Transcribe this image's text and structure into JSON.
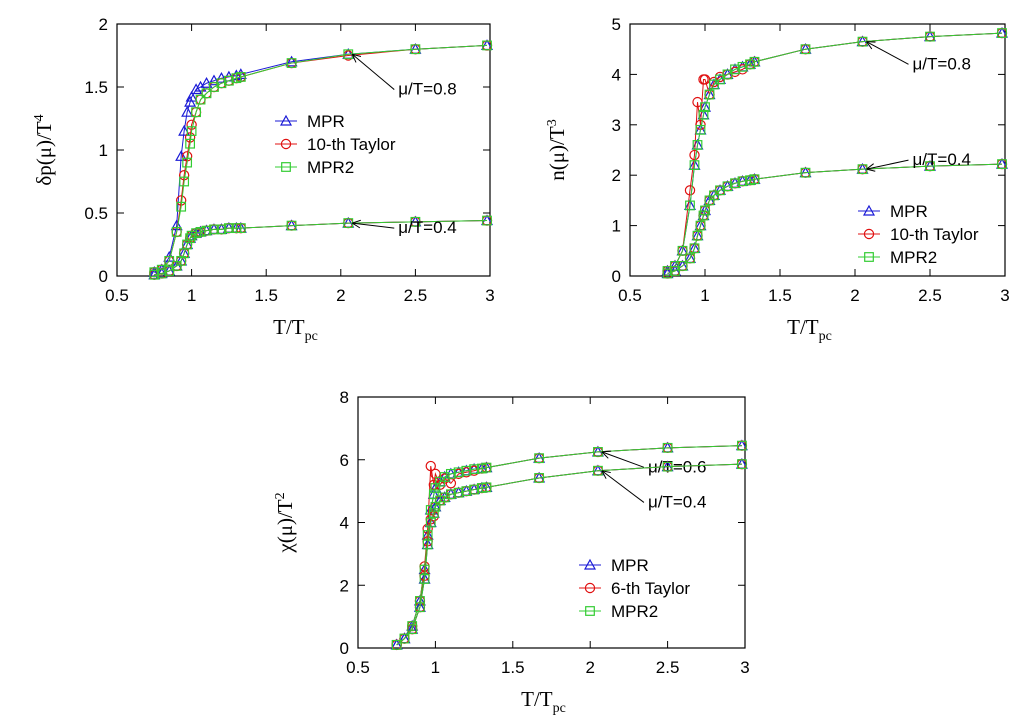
{
  "chart_data": [
    {
      "type": "line",
      "xlabel": "T/T",
      "xlabel_sub": "pc",
      "ylabel": "δp(μ)/T",
      "ylabel_sup": "4",
      "xlim": [
        0.5,
        3
      ],
      "ylim": [
        0,
        2
      ],
      "xticks": [
        "0.5",
        "1",
        "1.5",
        "2",
        "2.5",
        "3"
      ],
      "yticks": [
        "0",
        "0.5",
        "1",
        "1.5",
        "2"
      ],
      "legend": {
        "position": "center-right",
        "entries": [
          "MPR",
          "10-th Taylor",
          "MPR2"
        ]
      },
      "x": [
        0.75,
        0.8,
        0.85,
        0.9,
        0.93,
        0.95,
        0.97,
        0.99,
        1.0,
        1.03,
        1.06,
        1.1,
        1.15,
        1.2,
        1.25,
        1.3,
        1.33,
        1.67,
        2.05,
        2.5,
        2.98
      ],
      "curves": [
        {
          "annotation": "μ/T=0.8",
          "annotation_arrow_x": 2.05,
          "series": [
            {
              "name": "MPR",
              "values": [
                0.03,
                0.05,
                0.15,
                0.4,
                0.95,
                1.15,
                1.3,
                1.38,
                1.42,
                1.48,
                1.5,
                1.53,
                1.55,
                1.57,
                1.58,
                1.59,
                1.6,
                1.7,
                1.76,
                1.8,
                1.83
              ]
            },
            {
              "name": "10-th Taylor",
              "values": [
                0.03,
                0.05,
                0.12,
                0.35,
                0.6,
                0.8,
                0.95,
                1.1,
                1.2,
                1.3,
                1.4,
                1.45,
                1.5,
                1.53,
                1.55,
                1.57,
                1.58,
                1.69,
                1.75,
                1.8,
                1.83
              ]
            },
            {
              "name": "MPR2",
              "values": [
                0.03,
                0.05,
                0.12,
                0.35,
                0.55,
                0.75,
                0.9,
                1.05,
                1.15,
                1.3,
                1.4,
                1.45,
                1.5,
                1.53,
                1.55,
                1.57,
                1.58,
                1.69,
                1.76,
                1.8,
                1.83
              ]
            }
          ]
        },
        {
          "annotation": "μ/T=0.4",
          "annotation_arrow_x": 2.05,
          "series": [
            {
              "name": "MPR",
              "values": [
                0.01,
                0.02,
                0.04,
                0.08,
                0.12,
                0.18,
                0.25,
                0.3,
                0.32,
                0.34,
                0.35,
                0.36,
                0.37,
                0.37,
                0.38,
                0.38,
                0.38,
                0.4,
                0.42,
                0.43,
                0.44
              ]
            },
            {
              "name": "10-th Taylor",
              "values": [
                0.01,
                0.02,
                0.04,
                0.08,
                0.12,
                0.18,
                0.25,
                0.3,
                0.32,
                0.34,
                0.35,
                0.36,
                0.37,
                0.37,
                0.38,
                0.38,
                0.38,
                0.4,
                0.42,
                0.43,
                0.44
              ]
            },
            {
              "name": "MPR2",
              "values": [
                0.01,
                0.02,
                0.04,
                0.08,
                0.12,
                0.18,
                0.25,
                0.3,
                0.32,
                0.34,
                0.35,
                0.36,
                0.37,
                0.37,
                0.38,
                0.38,
                0.38,
                0.4,
                0.42,
                0.43,
                0.44
              ]
            }
          ]
        }
      ]
    },
    {
      "type": "line",
      "xlabel": "T/T",
      "xlabel_sub": "pc",
      "ylabel": "n(μ)/T",
      "ylabel_sup": "3",
      "xlim": [
        0.5,
        3
      ],
      "ylim": [
        0,
        5
      ],
      "xticks": [
        "0.5",
        "1",
        "1.5",
        "2",
        "2.5",
        "3"
      ],
      "yticks": [
        "0",
        "1",
        "2",
        "3",
        "4",
        "5"
      ],
      "legend": {
        "position": "bottom-right",
        "entries": [
          "MPR",
          "10-th Taylor",
          "MPR2"
        ]
      },
      "x": [
        0.75,
        0.8,
        0.85,
        0.9,
        0.93,
        0.95,
        0.97,
        0.99,
        1.0,
        1.03,
        1.06,
        1.1,
        1.15,
        1.2,
        1.25,
        1.3,
        1.33,
        1.67,
        2.05,
        2.5,
        2.98
      ],
      "curves": [
        {
          "annotation": "μ/T=0.8",
          "annotation_arrow_x": 2.05,
          "series": [
            {
              "name": "MPR",
              "values": [
                0.1,
                0.2,
                0.5,
                1.4,
                2.2,
                2.6,
                2.9,
                3.2,
                3.35,
                3.6,
                3.8,
                3.9,
                4.0,
                4.1,
                4.15,
                4.2,
                4.25,
                4.5,
                4.65,
                4.75,
                4.82
              ]
            },
            {
              "name": "10-th Taylor",
              "values": [
                0.1,
                0.2,
                0.5,
                1.7,
                2.4,
                3.45,
                3.0,
                3.9,
                3.9,
                3.6,
                3.85,
                3.95,
                4.0,
                4.05,
                4.1,
                4.2,
                4.25,
                4.5,
                4.65,
                4.75,
                4.82
              ]
            },
            {
              "name": "MPR2",
              "values": [
                0.1,
                0.2,
                0.5,
                1.4,
                2.2,
                2.6,
                2.9,
                3.2,
                3.35,
                3.6,
                3.8,
                3.9,
                4.0,
                4.1,
                4.15,
                4.2,
                4.25,
                4.5,
                4.65,
                4.75,
                4.82
              ]
            }
          ]
        },
        {
          "annotation": "μ/T=0.4",
          "annotation_arrow_x": 2.05,
          "series": [
            {
              "name": "MPR",
              "values": [
                0.05,
                0.1,
                0.2,
                0.35,
                0.55,
                0.8,
                1.0,
                1.2,
                1.3,
                1.5,
                1.6,
                1.7,
                1.78,
                1.84,
                1.88,
                1.9,
                1.92,
                2.05,
                2.12,
                2.18,
                2.22
              ]
            },
            {
              "name": "10-th Taylor",
              "values": [
                0.05,
                0.1,
                0.2,
                0.35,
                0.55,
                0.8,
                1.0,
                1.2,
                1.3,
                1.5,
                1.6,
                1.7,
                1.78,
                1.84,
                1.88,
                1.9,
                1.92,
                2.05,
                2.12,
                2.18,
                2.22
              ]
            },
            {
              "name": "MPR2",
              "values": [
                0.05,
                0.1,
                0.2,
                0.35,
                0.55,
                0.8,
                1.0,
                1.2,
                1.3,
                1.5,
                1.6,
                1.7,
                1.78,
                1.84,
                1.88,
                1.9,
                1.92,
                2.05,
                2.12,
                2.18,
                2.22
              ]
            }
          ]
        }
      ]
    },
    {
      "type": "line",
      "xlabel": "T/T",
      "xlabel_sub": "pc",
      "ylabel": "χ(μ)/T",
      "ylabel_sup": "2",
      "xlim": [
        0.5,
        3
      ],
      "ylim": [
        0,
        8
      ],
      "xticks": [
        "0.5",
        "1",
        "1.5",
        "2",
        "2.5",
        "3"
      ],
      "yticks": [
        "0",
        "2",
        "4",
        "6",
        "8"
      ],
      "legend": {
        "position": "bottom-right",
        "entries": [
          "MPR",
          "6-th Taylor",
          "MPR2"
        ]
      },
      "x": [
        0.75,
        0.8,
        0.85,
        0.9,
        0.93,
        0.95,
        0.97,
        0.99,
        1.0,
        1.03,
        1.06,
        1.1,
        1.15,
        1.2,
        1.25,
        1.3,
        1.33,
        1.67,
        2.05,
        2.5,
        2.98
      ],
      "curves": [
        {
          "annotation": "μ/T=0.6",
          "annotation_arrow_x": 2.05,
          "series": [
            {
              "name": "MPR",
              "values": [
                0.1,
                0.3,
                0.7,
                1.5,
                2.5,
                3.6,
                4.4,
                4.9,
                5.1,
                5.3,
                5.45,
                5.55,
                5.6,
                5.65,
                5.7,
                5.72,
                5.75,
                6.05,
                6.25,
                6.38,
                6.45
              ]
            },
            {
              "name": "6-th Taylor",
              "values": [
                0.1,
                0.3,
                0.7,
                1.5,
                2.6,
                3.8,
                5.8,
                5.2,
                5.55,
                5.2,
                5.4,
                5.25,
                5.55,
                5.6,
                5.65,
                5.72,
                5.75,
                6.05,
                6.25,
                6.38,
                6.45
              ]
            },
            {
              "name": "MPR2",
              "values": [
                0.1,
                0.3,
                0.7,
                1.5,
                2.5,
                3.6,
                4.4,
                4.9,
                5.1,
                5.3,
                5.45,
                5.55,
                5.6,
                5.65,
                5.7,
                5.72,
                5.75,
                6.05,
                6.25,
                6.38,
                6.45
              ]
            }
          ]
        },
        {
          "annotation": "μ/T=0.4",
          "annotation_arrow_x": 2.05,
          "series": [
            {
              "name": "MPR",
              "values": [
                0.1,
                0.3,
                0.6,
                1.3,
                2.2,
                3.3,
                4.0,
                4.3,
                4.5,
                4.7,
                4.8,
                4.9,
                4.95,
                5.0,
                5.05,
                5.1,
                5.12,
                5.42,
                5.65,
                5.78,
                5.86
              ]
            },
            {
              "name": "6-th Taylor",
              "values": [
                0.1,
                0.3,
                0.6,
                1.3,
                2.3,
                3.4,
                4.1,
                4.2,
                4.5,
                4.7,
                4.8,
                4.9,
                4.95,
                5.0,
                5.05,
                5.1,
                5.12,
                5.42,
                5.65,
                5.78,
                5.86
              ]
            },
            {
              "name": "MPR2",
              "values": [
                0.1,
                0.3,
                0.6,
                1.3,
                2.2,
                3.3,
                4.0,
                4.3,
                4.5,
                4.7,
                4.8,
                4.9,
                4.95,
                5.0,
                5.05,
                5.1,
                5.12,
                5.42,
                5.65,
                5.78,
                5.86
              ]
            }
          ]
        }
      ]
    }
  ],
  "colors": {
    "MPR": "#1a1ad6",
    "Taylor": "#e01010",
    "MPR2": "#33cc33",
    "axis": "#000000"
  }
}
